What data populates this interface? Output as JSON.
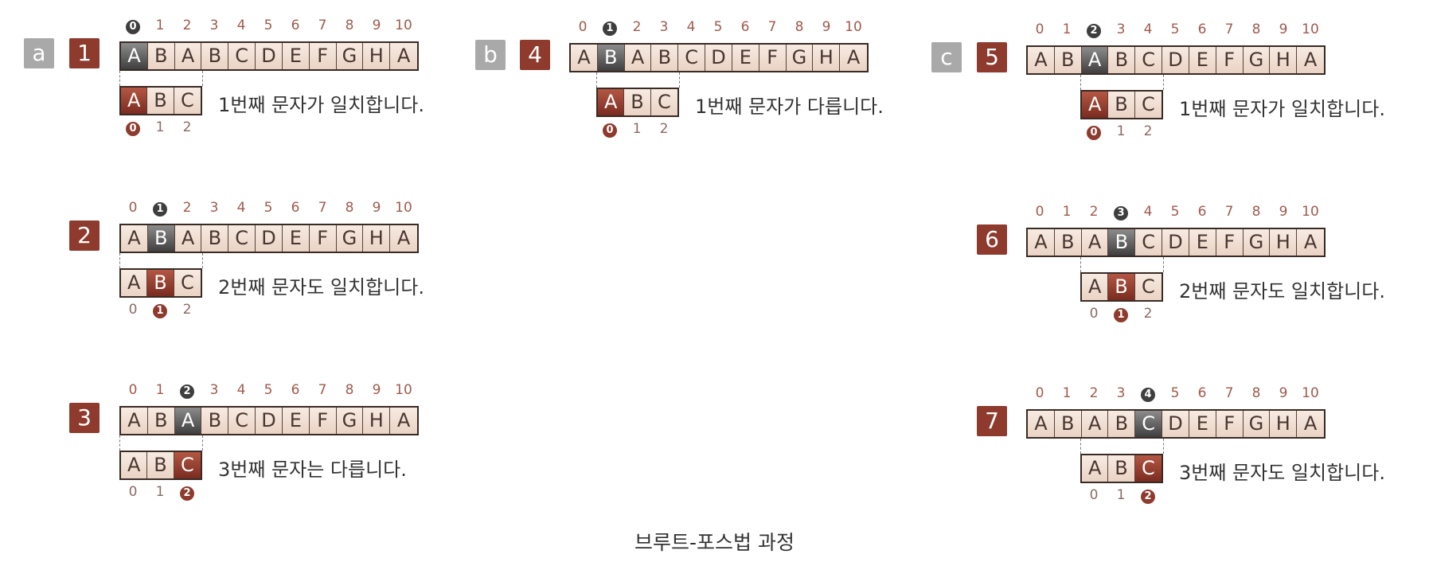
{
  "text_string": [
    "A",
    "B",
    "A",
    "B",
    "C",
    "D",
    "E",
    "F",
    "G",
    "H",
    "A"
  ],
  "pattern": [
    "A",
    "B",
    "C"
  ],
  "text_indices": [
    "0",
    "1",
    "2",
    "3",
    "4",
    "5",
    "6",
    "7",
    "8",
    "9",
    "10"
  ],
  "pattern_indices": [
    "0",
    "1",
    "2"
  ],
  "groups": [
    {
      "label": "a"
    },
    {
      "label": "b"
    },
    {
      "label": "c"
    }
  ],
  "steps": [
    {
      "number": "1",
      "text_pos": 0,
      "pattern_offset": 0,
      "compare": 0,
      "note": "1번째 문자가 일치합니다."
    },
    {
      "number": "2",
      "text_pos": 1,
      "pattern_offset": 0,
      "compare": 1,
      "note": "2번째 문자도 일치합니다."
    },
    {
      "number": "3",
      "text_pos": 2,
      "pattern_offset": 0,
      "compare": 2,
      "note": "3번째 문자는 다릅니다."
    },
    {
      "number": "4",
      "text_pos": 1,
      "pattern_offset": 1,
      "compare": 0,
      "note": "1번째 문자가 다릅니다."
    },
    {
      "number": "5",
      "text_pos": 2,
      "pattern_offset": 2,
      "compare": 0,
      "note": "1번째 문자가 일치합니다."
    },
    {
      "number": "6",
      "text_pos": 3,
      "pattern_offset": 2,
      "compare": 1,
      "note": "2번째 문자도 일치합니다."
    },
    {
      "number": "7",
      "text_pos": 4,
      "pattern_offset": 2,
      "compare": 2,
      "note": "3번째 문자도 일치합니다."
    }
  ],
  "caption": "브루트-포스법 과정",
  "colors": {
    "accent": "#8e3b2e",
    "gray_tag": "#a9a9a9",
    "highlight_text": "#3e3e3e"
  }
}
